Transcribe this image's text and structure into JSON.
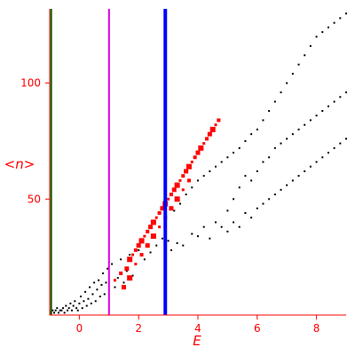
{
  "chart_data": {
    "type": "scatter",
    "title": "",
    "xlabel": "E",
    "ylabel_left": "<",
    "ylabel_var": "n",
    "ylabel_right": ">",
    "xlim": [
      -1.0,
      9.0
    ],
    "ylim": [
      0,
      132
    ],
    "x_ticks": [
      0,
      2,
      4,
      6,
      8
    ],
    "y_ticks": [
      50,
      100
    ],
    "grid": false,
    "legend": "none",
    "colors": {
      "axis": "#ff0000",
      "background_points": "#000000",
      "highlight_points": "#ff0000",
      "line_green": "#006400",
      "line_magenta": "#dd00dd",
      "line_blue": "#0000ff"
    },
    "vertical_lines": [
      {
        "x": -0.95,
        "color": "#006400"
      },
      {
        "x": 1.0,
        "color": "#dd00dd"
      },
      {
        "x": 2.9,
        "color": "#0000ff"
      }
    ],
    "series": [
      {
        "color": "#000000",
        "points": [
          [
            -0.95,
            1
          ],
          [
            -0.9,
            2
          ],
          [
            -0.85,
            1
          ],
          [
            -0.8,
            2
          ],
          [
            -0.75,
            3
          ],
          [
            -0.7,
            1
          ],
          [
            -0.65,
            2
          ],
          [
            -0.6,
            2
          ],
          [
            -0.55,
            3
          ],
          [
            -0.5,
            1
          ],
          [
            -0.45,
            4
          ],
          [
            -0.4,
            2
          ],
          [
            -0.35,
            3
          ],
          [
            -0.3,
            5
          ],
          [
            -0.25,
            2
          ],
          [
            -0.2,
            4
          ],
          [
            -0.15,
            6
          ],
          [
            -0.1,
            3
          ],
          [
            -0.05,
            2
          ],
          [
            0.0,
            5
          ],
          [
            0.05,
            8
          ],
          [
            0.1,
            3
          ],
          [
            0.15,
            6
          ],
          [
            0.2,
            10
          ],
          [
            0.25,
            4
          ],
          [
            0.3,
            7
          ],
          [
            0.35,
            12
          ],
          [
            0.4,
            5
          ],
          [
            0.45,
            9
          ],
          [
            0.5,
            14
          ],
          [
            0.55,
            6
          ],
          [
            0.6,
            11
          ],
          [
            0.65,
            15
          ],
          [
            0.7,
            8
          ],
          [
            0.75,
            13
          ],
          [
            0.8,
            18
          ],
          [
            0.85,
            9
          ],
          [
            0.9,
            14
          ],
          [
            0.95,
            20
          ],
          [
            1.1,
            22
          ],
          [
            1.2,
            12
          ],
          [
            1.3,
            16
          ],
          [
            1.4,
            24
          ],
          [
            1.5,
            14
          ],
          [
            1.6,
            19
          ],
          [
            1.7,
            26
          ],
          [
            1.8,
            17
          ],
          [
            1.9,
            22
          ],
          [
            2.0,
            28
          ],
          [
            2.2,
            24
          ],
          [
            2.4,
            27
          ],
          [
            2.6,
            30
          ],
          [
            2.8,
            33
          ],
          [
            3.0,
            32
          ],
          [
            3.1,
            28
          ],
          [
            3.3,
            31
          ],
          [
            3.5,
            30
          ],
          [
            3.8,
            35
          ],
          [
            4.0,
            34
          ],
          [
            4.2,
            38
          ],
          [
            4.4,
            33
          ],
          [
            4.6,
            40
          ],
          [
            4.8,
            38
          ],
          [
            3.2,
            45
          ],
          [
            3.4,
            48
          ],
          [
            3.6,
            52
          ],
          [
            3.8,
            55
          ],
          [
            4.0,
            58
          ],
          [
            4.2,
            60
          ],
          [
            4.4,
            62
          ],
          [
            4.6,
            64
          ],
          [
            4.8,
            66
          ],
          [
            5.0,
            36
          ],
          [
            5.0,
            45
          ],
          [
            5.0,
            68
          ],
          [
            5.2,
            40
          ],
          [
            5.2,
            50
          ],
          [
            5.2,
            70
          ],
          [
            5.4,
            38
          ],
          [
            5.4,
            55
          ],
          [
            5.4,
            72
          ],
          [
            5.6,
            44
          ],
          [
            5.6,
            60
          ],
          [
            5.6,
            75
          ],
          [
            5.8,
            42
          ],
          [
            5.8,
            58
          ],
          [
            5.8,
            78
          ],
          [
            6.0,
            46
          ],
          [
            6.0,
            62
          ],
          [
            6.0,
            80
          ],
          [
            6.2,
            48
          ],
          [
            6.2,
            66
          ],
          [
            6.2,
            84
          ],
          [
            6.4,
            50
          ],
          [
            6.4,
            68
          ],
          [
            6.4,
            88
          ],
          [
            6.6,
            52
          ],
          [
            6.6,
            72
          ],
          [
            6.6,
            92
          ],
          [
            6.8,
            54
          ],
          [
            6.8,
            74
          ],
          [
            6.8,
            96
          ],
          [
            7.0,
            56
          ],
          [
            7.0,
            76
          ],
          [
            7.0,
            100
          ],
          [
            7.2,
            58
          ],
          [
            7.2,
            78
          ],
          [
            7.2,
            104
          ],
          [
            7.4,
            60
          ],
          [
            7.4,
            80
          ],
          [
            7.4,
            108
          ],
          [
            7.6,
            62
          ],
          [
            7.6,
            82
          ],
          [
            7.6,
            112
          ],
          [
            7.8,
            64
          ],
          [
            7.8,
            84
          ],
          [
            7.8,
            116
          ],
          [
            8.0,
            66
          ],
          [
            8.0,
            86
          ],
          [
            8.0,
            120
          ],
          [
            8.2,
            68
          ],
          [
            8.2,
            88
          ],
          [
            8.2,
            122
          ],
          [
            8.4,
            70
          ],
          [
            8.4,
            90
          ],
          [
            8.4,
            124
          ],
          [
            8.6,
            72
          ],
          [
            8.6,
            92
          ],
          [
            8.6,
            126
          ],
          [
            8.8,
            74
          ],
          [
            8.8,
            94
          ],
          [
            8.8,
            128
          ],
          [
            9.0,
            76
          ],
          [
            9.0,
            96
          ],
          [
            9.0,
            130
          ]
        ]
      },
      {
        "color": "#ff0000",
        "points": [
          [
            1.2,
            15
          ],
          [
            1.4,
            18
          ],
          [
            1.6,
            20
          ],
          [
            1.7,
            24
          ],
          [
            1.8,
            26
          ],
          [
            1.9,
            28
          ],
          [
            2.0,
            30
          ],
          [
            2.1,
            32
          ],
          [
            2.2,
            34
          ],
          [
            2.3,
            36
          ],
          [
            2.4,
            38
          ],
          [
            2.5,
            40
          ],
          [
            2.6,
            42
          ],
          [
            2.7,
            44
          ],
          [
            2.8,
            46
          ],
          [
            2.9,
            48
          ],
          [
            3.0,
            50
          ],
          [
            3.1,
            52
          ],
          [
            3.2,
            54
          ],
          [
            3.3,
            56
          ],
          [
            3.4,
            58
          ],
          [
            3.5,
            60
          ],
          [
            3.6,
            62
          ],
          [
            3.7,
            64
          ],
          [
            3.8,
            66
          ],
          [
            3.9,
            68
          ],
          [
            4.0,
            70
          ],
          [
            4.1,
            72
          ],
          [
            4.2,
            74
          ],
          [
            4.3,
            76
          ],
          [
            4.4,
            78
          ],
          [
            4.5,
            80
          ],
          [
            4.6,
            82
          ],
          [
            4.7,
            84
          ],
          [
            1.5,
            12
          ],
          [
            1.7,
            16
          ],
          [
            1.9,
            22
          ],
          [
            2.1,
            26
          ],
          [
            2.3,
            30
          ],
          [
            2.5,
            34
          ],
          [
            2.7,
            38
          ],
          [
            2.9,
            42
          ],
          [
            3.1,
            46
          ],
          [
            3.3,
            50
          ],
          [
            3.5,
            54
          ],
          [
            3.7,
            58
          ]
        ]
      }
    ]
  }
}
